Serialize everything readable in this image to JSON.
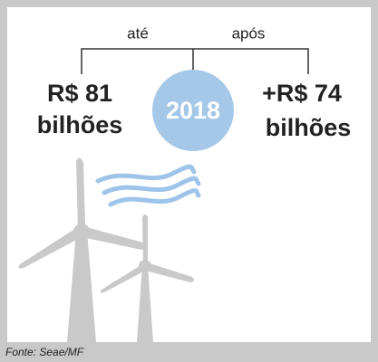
{
  "bracket": {
    "left_label": "até",
    "right_label": "após"
  },
  "left": {
    "lines": [
      "R$ 81",
      "bilhões"
    ]
  },
  "center": {
    "label": "2018"
  },
  "right": {
    "lines": [
      "+R$ 74",
      "bilhões"
    ]
  },
  "footer": {
    "source": "Fonte: Seae/MF"
  }
}
